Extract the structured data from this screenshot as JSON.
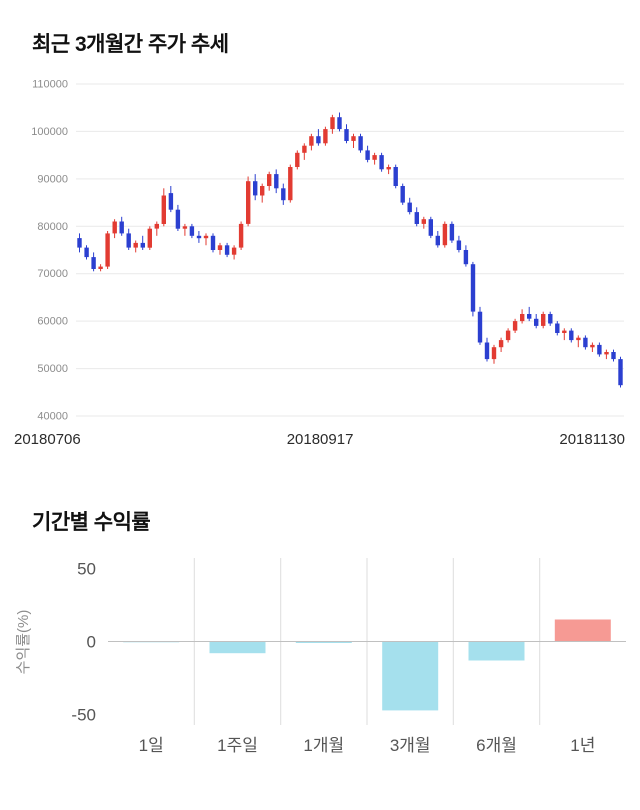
{
  "chart_data": [
    {
      "type": "candlestick",
      "title": "최근 3개월간 주가 추세",
      "ylim": [
        40000,
        110000
      ],
      "y_ticks": [
        110000,
        100000,
        90000,
        80000,
        70000,
        60000,
        50000,
        40000
      ],
      "x_axis_labels": [
        "20180706",
        "20180917",
        "20181130"
      ],
      "grid": "horizontal",
      "legend": "none",
      "colors": {
        "up": "#e23b32",
        "down": "#2b3fd0",
        "grid": "#e9e9e9",
        "tick_text": "#8c8c8c",
        "axis_text": "#2b2b2b"
      },
      "ohlc_format": [
        "open",
        "high",
        "low",
        "close"
      ],
      "ohlc": [
        [
          77500,
          78500,
          74500,
          75500
        ],
        [
          75500,
          76000,
          73000,
          73500
        ],
        [
          73500,
          74500,
          70500,
          71000
        ],
        [
          71000,
          72000,
          70500,
          71500
        ],
        [
          71500,
          79000,
          71000,
          78500
        ],
        [
          78500,
          81500,
          77500,
          81000
        ],
        [
          81000,
          82000,
          78000,
          78500
        ],
        [
          78500,
          79500,
          75000,
          75500
        ],
        [
          75500,
          77000,
          74500,
          76500
        ],
        [
          76500,
          78000,
          75000,
          75500
        ],
        [
          75500,
          80000,
          75000,
          79500
        ],
        [
          79500,
          81000,
          78000,
          80500
        ],
        [
          80500,
          88000,
          80000,
          86500
        ],
        [
          87000,
          88500,
          83000,
          83500
        ],
        [
          83500,
          84500,
          79000,
          79500
        ],
        [
          79500,
          80500,
          78000,
          80000
        ],
        [
          80000,
          80500,
          77500,
          78000
        ],
        [
          78000,
          79000,
          76500,
          77500
        ],
        [
          77500,
          78500,
          76000,
          78000
        ],
        [
          78000,
          78500,
          74500,
          75000
        ],
        [
          75000,
          76500,
          74000,
          76000
        ],
        [
          76000,
          76500,
          73500,
          74000
        ],
        [
          74000,
          76000,
          73000,
          75500
        ],
        [
          75500,
          81000,
          75000,
          80500
        ],
        [
          80500,
          90500,
          80000,
          89500
        ],
        [
          89500,
          91000,
          85500,
          86500
        ],
        [
          86500,
          89000,
          85000,
          88500
        ],
        [
          88500,
          91500,
          87500,
          91000
        ],
        [
          91000,
          92000,
          87000,
          88000
        ],
        [
          88000,
          89000,
          84500,
          85500
        ],
        [
          85500,
          93000,
          85000,
          92500
        ],
        [
          92500,
          96000,
          92000,
          95500
        ],
        [
          95500,
          97500,
          94000,
          97000
        ],
        [
          97000,
          99500,
          96000,
          99000
        ],
        [
          99000,
          100500,
          97000,
          97500
        ],
        [
          97500,
          101000,
          97000,
          100500
        ],
        [
          100500,
          103500,
          99500,
          103000
        ],
        [
          103000,
          104000,
          100000,
          100500
        ],
        [
          100500,
          101500,
          97500,
          98000
        ],
        [
          98000,
          99500,
          96500,
          99000
        ],
        [
          99000,
          99500,
          95500,
          96000
        ],
        [
          96000,
          97000,
          93500,
          94000
        ],
        [
          94000,
          95500,
          93000,
          95000
        ],
        [
          95000,
          95500,
          91500,
          92000
        ],
        [
          92000,
          93000,
          91000,
          92500
        ],
        [
          92500,
          93000,
          88000,
          88500
        ],
        [
          88500,
          89000,
          84500,
          85000
        ],
        [
          85000,
          86000,
          82500,
          83000
        ],
        [
          83000,
          84000,
          80000,
          80500
        ],
        [
          80500,
          82000,
          79500,
          81500
        ],
        [
          81500,
          82000,
          77500,
          78000
        ],
        [
          78000,
          79000,
          75500,
          76000
        ],
        [
          76000,
          81000,
          75500,
          80500
        ],
        [
          80500,
          81000,
          76500,
          77000
        ],
        [
          77000,
          78000,
          74500,
          75000
        ],
        [
          75000,
          76000,
          71500,
          72000
        ],
        [
          72000,
          72500,
          61000,
          62000
        ],
        [
          62000,
          63000,
          55000,
          55500
        ],
        [
          55500,
          56500,
          51500,
          52000
        ],
        [
          52000,
          55000,
          51000,
          54500
        ],
        [
          54500,
          56500,
          53500,
          56000
        ],
        [
          56000,
          58500,
          55500,
          58000
        ],
        [
          58000,
          60500,
          57500,
          60000
        ],
        [
          60000,
          62500,
          59500,
          61500
        ],
        [
          61500,
          63000,
          60000,
          60500
        ],
        [
          60500,
          61500,
          58500,
          59000
        ],
        [
          59000,
          62000,
          58500,
          61500
        ],
        [
          61500,
          62000,
          59000,
          59500
        ],
        [
          59500,
          60000,
          57000,
          57500
        ],
        [
          57500,
          58500,
          56000,
          58000
        ],
        [
          58000,
          58500,
          55500,
          56000
        ],
        [
          56000,
          57000,
          54500,
          56500
        ],
        [
          56500,
          57000,
          54000,
          54500
        ],
        [
          54500,
          55500,
          53500,
          55000
        ],
        [
          55000,
          55500,
          52500,
          53000
        ],
        [
          53000,
          54000,
          52000,
          53500
        ],
        [
          53500,
          54000,
          51500,
          52000
        ],
        [
          52000,
          52500,
          46000,
          46500
        ]
      ]
    },
    {
      "type": "bar",
      "title": "기간별 수익률",
      "ylabel": "수익률(%)",
      "categories": [
        "1일",
        "1주일",
        "1개월",
        "3개월",
        "6개월",
        "1년"
      ],
      "values": [
        -0.5,
        -8,
        -1,
        -47,
        -13,
        15
      ],
      "ylim": [
        -57,
        57
      ],
      "y_ticks": [
        50,
        0,
        -50
      ],
      "grid": "vertical-separators",
      "legend": "none",
      "colors": {
        "negative": "#a5e0ed",
        "positive": "#f69a94",
        "separator": "#dddddd",
        "zero_line": "#c0c0c0",
        "tick_text": "#555555",
        "ylabel_text": "#8c8c8c",
        "category_text": "#555555"
      }
    }
  ]
}
